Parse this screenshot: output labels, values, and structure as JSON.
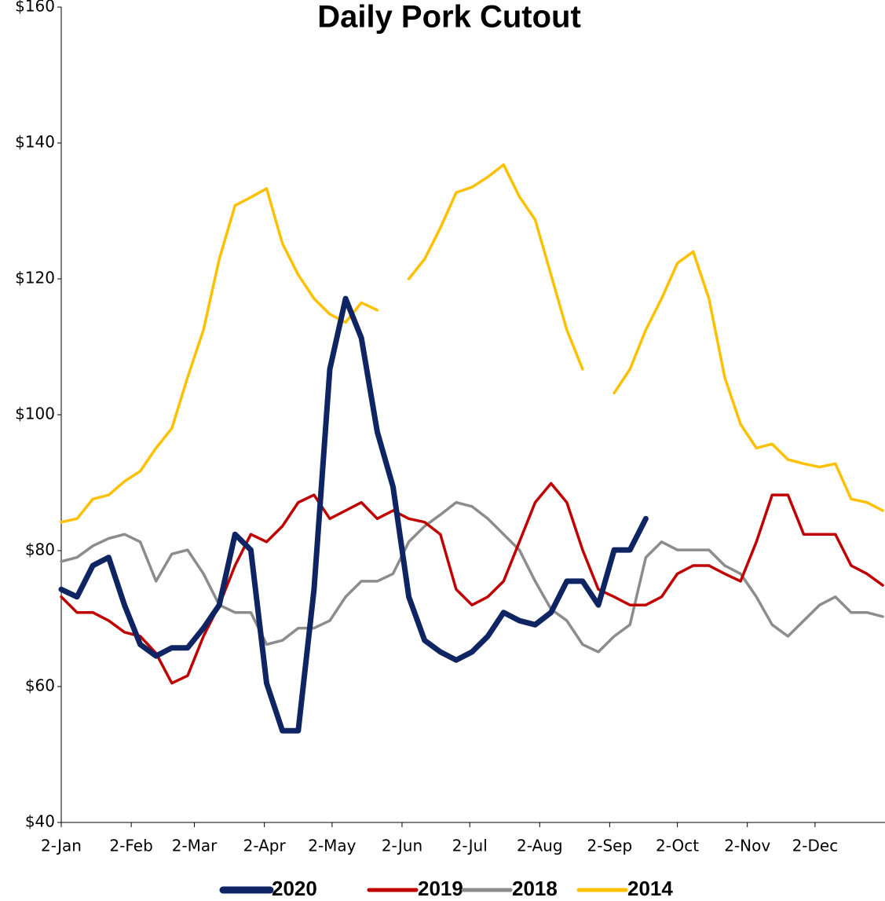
{
  "chart_data": {
    "type": "line",
    "title": "Daily Pork Cutout",
    "x": [
      1,
      8,
      15,
      22,
      29,
      36,
      43,
      50,
      57,
      64,
      71,
      78,
      85,
      92,
      99,
      106,
      113,
      120,
      127,
      134,
      141,
      148,
      155,
      162,
      169,
      176,
      183,
      190,
      197,
      204,
      211,
      218,
      225,
      232,
      239,
      246,
      253,
      260,
      267,
      274,
      281,
      288,
      295,
      302,
      309,
      316,
      323,
      330,
      337,
      344,
      351,
      358,
      365
    ],
    "xlim": [
      1,
      366
    ],
    "xticks": [
      {
        "value": 1,
        "label": "2-Jan"
      },
      {
        "value": 32,
        "label": "2-Feb"
      },
      {
        "value": 60,
        "label": "2-Mar"
      },
      {
        "value": 91,
        "label": "2-Apr"
      },
      {
        "value": 121,
        "label": "2-May"
      },
      {
        "value": 152,
        "label": "2-Jun"
      },
      {
        "value": 182,
        "label": "2-Jul"
      },
      {
        "value": 213,
        "label": "2-Aug"
      },
      {
        "value": 244,
        "label": "2-Sep"
      },
      {
        "value": 274,
        "label": "2-Oct"
      },
      {
        "value": 305,
        "label": "2-Nov"
      },
      {
        "value": 335,
        "label": "2-Dec"
      }
    ],
    "ylim": [
      40,
      160
    ],
    "yticks": [
      {
        "value": 40,
        "label": "$40"
      },
      {
        "value": 60,
        "label": "$60"
      },
      {
        "value": 80,
        "label": "$80"
      },
      {
        "value": 100,
        "label": "$100"
      },
      {
        "value": 120,
        "label": "$120"
      },
      {
        "value": 140,
        "label": "$140"
      },
      {
        "value": 160,
        "label": "$160"
      }
    ],
    "grid": false,
    "legend": "bottom",
    "series": [
      {
        "name": "2020",
        "color": "#0e2463",
        "values": [
          74.3,
          73.2,
          77.8,
          79,
          72,
          66.2,
          64.5,
          65.7,
          65.7,
          68.6,
          72,
          82.4,
          80.1,
          60.5,
          53.5,
          53.5,
          74.3,
          106.7,
          117.1,
          111.3,
          97.5,
          89.4,
          73.2,
          66.8,
          65.1,
          63.9,
          65.1,
          67.4,
          70.9,
          69.7,
          69.1,
          70.9,
          75.5,
          75.5,
          72,
          80.1,
          80.1,
          84.7,
          null,
          null,
          null,
          null,
          null,
          null,
          null,
          null,
          null,
          null,
          null,
          null,
          null,
          null,
          null
        ]
      },
      {
        "name": "2019",
        "color": "#c00000",
        "values": [
          73.2,
          70.9,
          70.9,
          69.7,
          68,
          67.4,
          64.9,
          60.5,
          61.6,
          67.4,
          72,
          77.8,
          82.4,
          81.3,
          83.6,
          87.1,
          88.2,
          84.7,
          85.9,
          87.1,
          84.7,
          85.9,
          84.7,
          84.2,
          82.4,
          74.3,
          72,
          73.2,
          75.5,
          81.3,
          87.1,
          89.9,
          87.1,
          80.1,
          74.3,
          73.2,
          72,
          72,
          73.2,
          76.6,
          77.8,
          77.8,
          76.6,
          75.5,
          81.3,
          88.2,
          88.2,
          82.4,
          82.4,
          82.4,
          77.8,
          76.6,
          74.9
        ]
      },
      {
        "name": "2018",
        "color": "#8c8c8c",
        "values": [
          78.4,
          79,
          80.7,
          81.8,
          82.4,
          81.3,
          75.5,
          79.5,
          80.1,
          76.6,
          72,
          70.9,
          70.9,
          66.2,
          66.8,
          68.6,
          68.6,
          69.7,
          73.2,
          75.5,
          75.5,
          76.6,
          81.3,
          83.6,
          85.3,
          87.1,
          86.5,
          84.7,
          82.4,
          80.1,
          75.5,
          71.4,
          69.7,
          66.2,
          65.1,
          67.4,
          69.1,
          79,
          81.3,
          80.1,
          80.1,
          80.1,
          77.8,
          76.6,
          73.2,
          69.1,
          67.4,
          69.7,
          72,
          73.2,
          70.9,
          70.9,
          70.3
        ]
      },
      {
        "name": "2014",
        "color": "#ffc000",
        "values": [
          84.2,
          84.7,
          87.6,
          88.2,
          90.2,
          91.7,
          95.1,
          98,
          105.5,
          112.5,
          122.9,
          130.8,
          132,
          133.3,
          125.2,
          120.6,
          117.1,
          114.8,
          113.6,
          116.5,
          115.4,
          null,
          120,
          122.9,
          127.5,
          132.7,
          133.5,
          135,
          136.8,
          132.1,
          128.7,
          120.6,
          112.5,
          106.7,
          null,
          103.2,
          106.7,
          112.5,
          117.1,
          122.3,
          124,
          117.1,
          105.5,
          98.6,
          95.1,
          95.7,
          93.4,
          92.8,
          92.3,
          92.8,
          87.6,
          87.1,
          85.9
        ]
      }
    ]
  }
}
